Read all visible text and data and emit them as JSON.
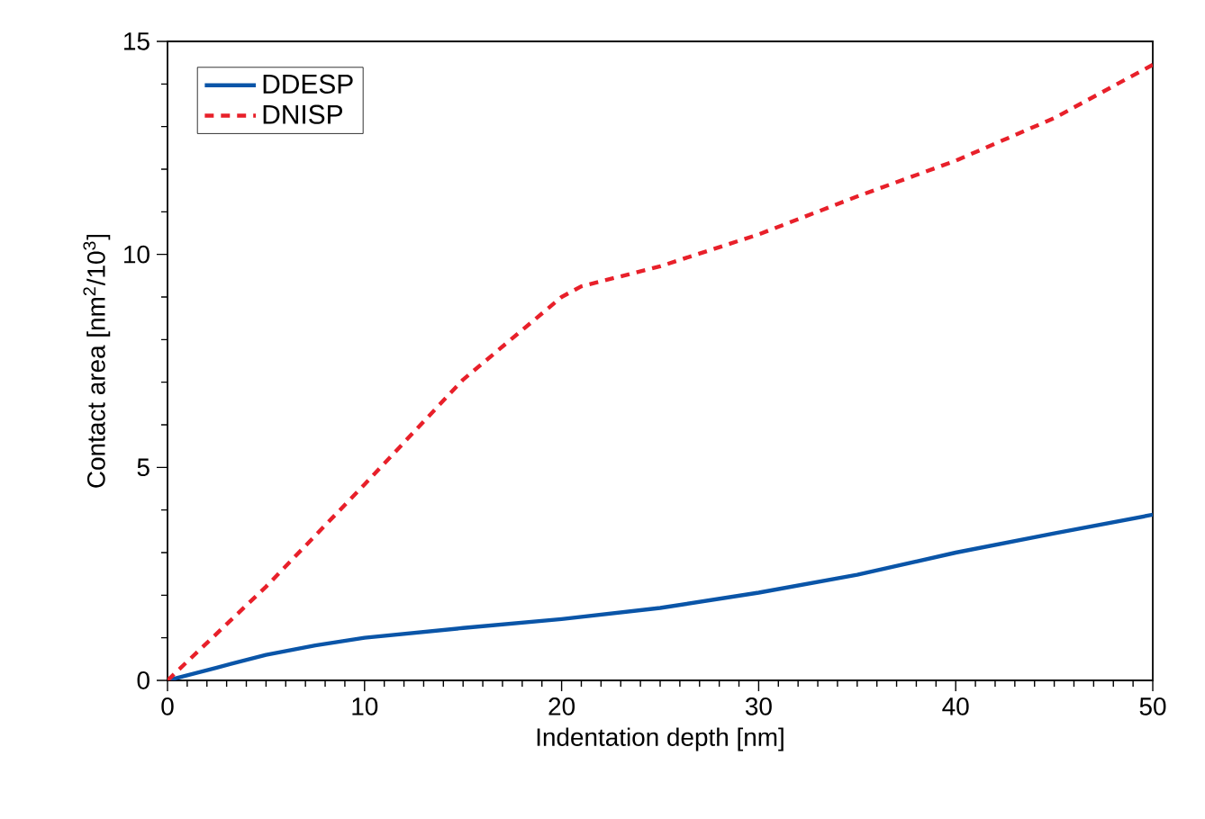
{
  "chart_data": {
    "type": "line",
    "xlabel": "Indentation depth [nm]",
    "ylabel": "Contact area [nm$^{2}$/10$^{3}$]",
    "x": [
      0,
      2.5,
      5,
      7.5,
      10,
      15,
      20,
      25,
      30,
      35,
      40,
      45,
      50
    ],
    "series": [
      {
        "name": "DDESP",
        "color": "#0a55a8",
        "line_style": "solid",
        "values": [
          0,
          0.3,
          0.6,
          0.82,
          1.0,
          1.23,
          1.44,
          1.7,
          2.06,
          2.48,
          3.0,
          3.45,
          3.89
        ]
      },
      {
        "name": "DNISP",
        "color": "#e8202a",
        "line_style": "dashed",
        "x": [
          0,
          5,
          10,
          15,
          20,
          21,
          25,
          30,
          35,
          40,
          45,
          50
        ],
        "values": [
          0,
          2.2,
          4.6,
          7.06,
          9.0,
          9.25,
          9.72,
          10.47,
          11.36,
          12.2,
          13.2,
          14.45
        ]
      }
    ],
    "xlim": [
      0,
      50
    ],
    "ylim": [
      0,
      15
    ],
    "xticks": [
      0,
      10,
      20,
      30,
      40,
      50
    ],
    "yticks": [
      0,
      5,
      10,
      15
    ],
    "legend": "top left",
    "grid": false
  }
}
